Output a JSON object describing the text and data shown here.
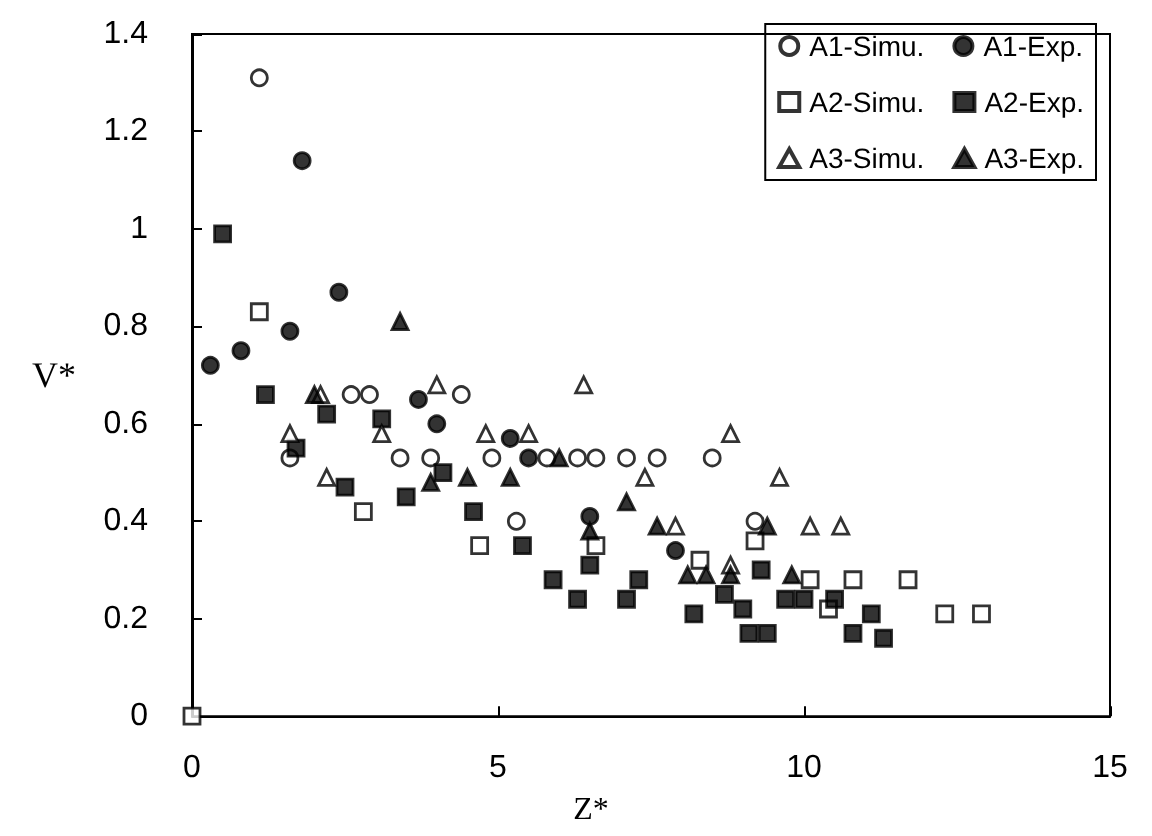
{
  "chart_data": {
    "type": "scatter",
    "xlabel": "Z*",
    "ylabel": "V*",
    "xlim": [
      0,
      15
    ],
    "xticks": [
      0,
      5,
      10,
      15
    ],
    "ylim": [
      0,
      1.4
    ],
    "yticks": [
      0,
      0.2,
      0.4,
      0.6,
      0.8,
      1,
      1.2,
      1.4
    ],
    "grid": false,
    "legend": "top right",
    "series": [
      {
        "name": "A1-Simu.",
        "color": "#ffffff",
        "marker": "circle",
        "x": [
          1.1,
          1.6,
          2.6,
          2.9,
          3.4,
          3.9,
          4.4,
          4.9,
          5.3,
          5.8,
          6.3,
          6.6,
          7.1,
          7.6,
          8.5,
          9.2
        ],
        "values": [
          1.31,
          0.53,
          0.66,
          0.66,
          0.53,
          0.53,
          0.66,
          0.53,
          0.4,
          0.53,
          0.53,
          0.53,
          0.53,
          0.53,
          0.53,
          0.4
        ]
      },
      {
        "name": "A1-Exp.",
        "color": "#000000",
        "marker": "circle",
        "x": [
          0.3,
          0.8,
          1.6,
          1.8,
          2.4,
          3.7,
          4.0,
          5.2,
          5.5,
          6.5,
          7.9
        ],
        "values": [
          0.72,
          0.75,
          0.79,
          1.14,
          0.87,
          0.65,
          0.6,
          0.57,
          0.53,
          0.41,
          0.34
        ]
      },
      {
        "name": "A2-Simu.",
        "color": "#ffffff",
        "marker": "square",
        "x": [
          0,
          1.1,
          2.8,
          4.7,
          6.6,
          8.3,
          9.2,
          10.1,
          10.4,
          10.8,
          11.7,
          12.3,
          12.9
        ],
        "values": [
          0,
          0.83,
          0.42,
          0.35,
          0.35,
          0.32,
          0.36,
          0.28,
          0.22,
          0.28,
          0.28,
          0.21,
          0.21
        ]
      },
      {
        "name": "A2-Exp.",
        "color": "#000000",
        "marker": "square",
        "x": [
          0.5,
          1.2,
          1.7,
          2.2,
          2.5,
          3.1,
          3.5,
          4.1,
          4.6,
          5.4,
          5.9,
          6.3,
          6.5,
          7.1,
          7.3,
          8.2,
          8.7,
          9.0,
          9.1,
          9.3,
          9.4,
          9.7,
          10.0,
          10.5,
          10.8,
          11.1,
          11.3
        ],
        "values": [
          0.99,
          0.66,
          0.55,
          0.62,
          0.47,
          0.61,
          0.45,
          0.5,
          0.42,
          0.35,
          0.28,
          0.24,
          0.31,
          0.24,
          0.28,
          0.21,
          0.25,
          0.22,
          0.17,
          0.3,
          0.17,
          0.24,
          0.24,
          0.24,
          0.17,
          0.21,
          0.16
        ]
      },
      {
        "name": "A3-Simu.",
        "color": "#ffffff",
        "marker": "triangle",
        "x": [
          1.6,
          2.1,
          2.2,
          3.1,
          4.0,
          4.8,
          5.5,
          6.4,
          7.4,
          7.9,
          8.8,
          8.8,
          9.6,
          10.1,
          10.6
        ],
        "values": [
          0.58,
          0.66,
          0.49,
          0.58,
          0.68,
          0.58,
          0.58,
          0.68,
          0.49,
          0.39,
          0.58,
          0.31,
          0.49,
          0.39,
          0.39
        ]
      },
      {
        "name": "A3-Exp.",
        "color": "#000000",
        "marker": "triangle",
        "x": [
          2.0,
          3.4,
          3.9,
          4.5,
          5.2,
          6.0,
          6.5,
          7.1,
          7.6,
          8.1,
          8.4,
          8.8,
          9.4,
          9.8
        ],
        "values": [
          0.66,
          0.81,
          0.48,
          0.49,
          0.49,
          0.53,
          0.38,
          0.44,
          0.39,
          0.29,
          0.29,
          0.29,
          0.39,
          0.29
        ]
      }
    ]
  }
}
